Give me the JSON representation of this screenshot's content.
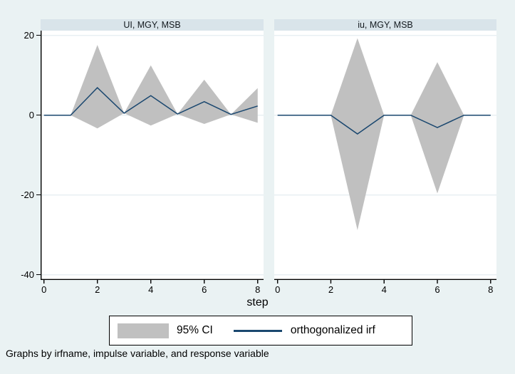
{
  "colors": {
    "background": "#eaf2f3",
    "panel_header": "#d9e4ea",
    "plot_background": "#ffffff",
    "grid": "#e4edf0",
    "ci_fill": "#c0c0c0",
    "irf_line": "#1a476f"
  },
  "figure": {
    "xlabel": "step",
    "caption": "Graphs by irfname, impulse variable, and response variable",
    "legend": [
      {
        "swatch": "area",
        "label": "95% CI"
      },
      {
        "swatch": "line",
        "label": "orthogonalized irf"
      }
    ]
  },
  "chart_data": [
    {
      "type": "area",
      "title": "UI, MGY, MSB",
      "x": [
        0,
        1,
        2,
        3,
        4,
        5,
        6,
        7,
        8
      ],
      "series": [
        {
          "name": "95% CI upper",
          "values": [
            0,
            0,
            17.6,
            0.5,
            12.5,
            0.3,
            8.9,
            0.2,
            6.8
          ]
        },
        {
          "name": "95% CI lower",
          "values": [
            0,
            0,
            -3.3,
            0.5,
            -2.6,
            0.3,
            -2.2,
            0.2,
            -1.9
          ]
        },
        {
          "name": "orthogonalized irf",
          "values": [
            0,
            0,
            6.9,
            0.5,
            4.9,
            0.3,
            3.4,
            0.2,
            2.3
          ]
        }
      ],
      "xticks": [
        0,
        2,
        4,
        6,
        8
      ],
      "yticks": [
        20,
        0,
        -20,
        -40
      ],
      "xlim": [
        -0.125,
        8.22
      ],
      "ylim": [
        -41.3,
        21.2
      ],
      "grid": true,
      "axis_left": true
    },
    {
      "type": "area",
      "title": "iu, MGY, MSB",
      "x": [
        0,
        1,
        2,
        3,
        4,
        5,
        6,
        7,
        8
      ],
      "series": [
        {
          "name": "95% CI upper",
          "values": [
            0,
            0,
            0,
            19.3,
            0,
            0,
            13.3,
            0,
            0
          ]
        },
        {
          "name": "95% CI lower",
          "values": [
            0,
            0,
            0,
            -28.8,
            0,
            0,
            -19.6,
            0,
            0
          ]
        },
        {
          "name": "orthogonalized irf",
          "values": [
            0,
            0,
            0,
            -4.7,
            0,
            0,
            -3.1,
            0,
            0
          ]
        }
      ],
      "xticks": [
        0,
        2,
        4,
        6,
        8
      ],
      "yticks": [
        20,
        0,
        -20,
        -40
      ],
      "xlim": [
        -0.125,
        8.22
      ],
      "ylim": [
        -41.3,
        21.2
      ],
      "grid": true,
      "axis_left": false
    }
  ]
}
